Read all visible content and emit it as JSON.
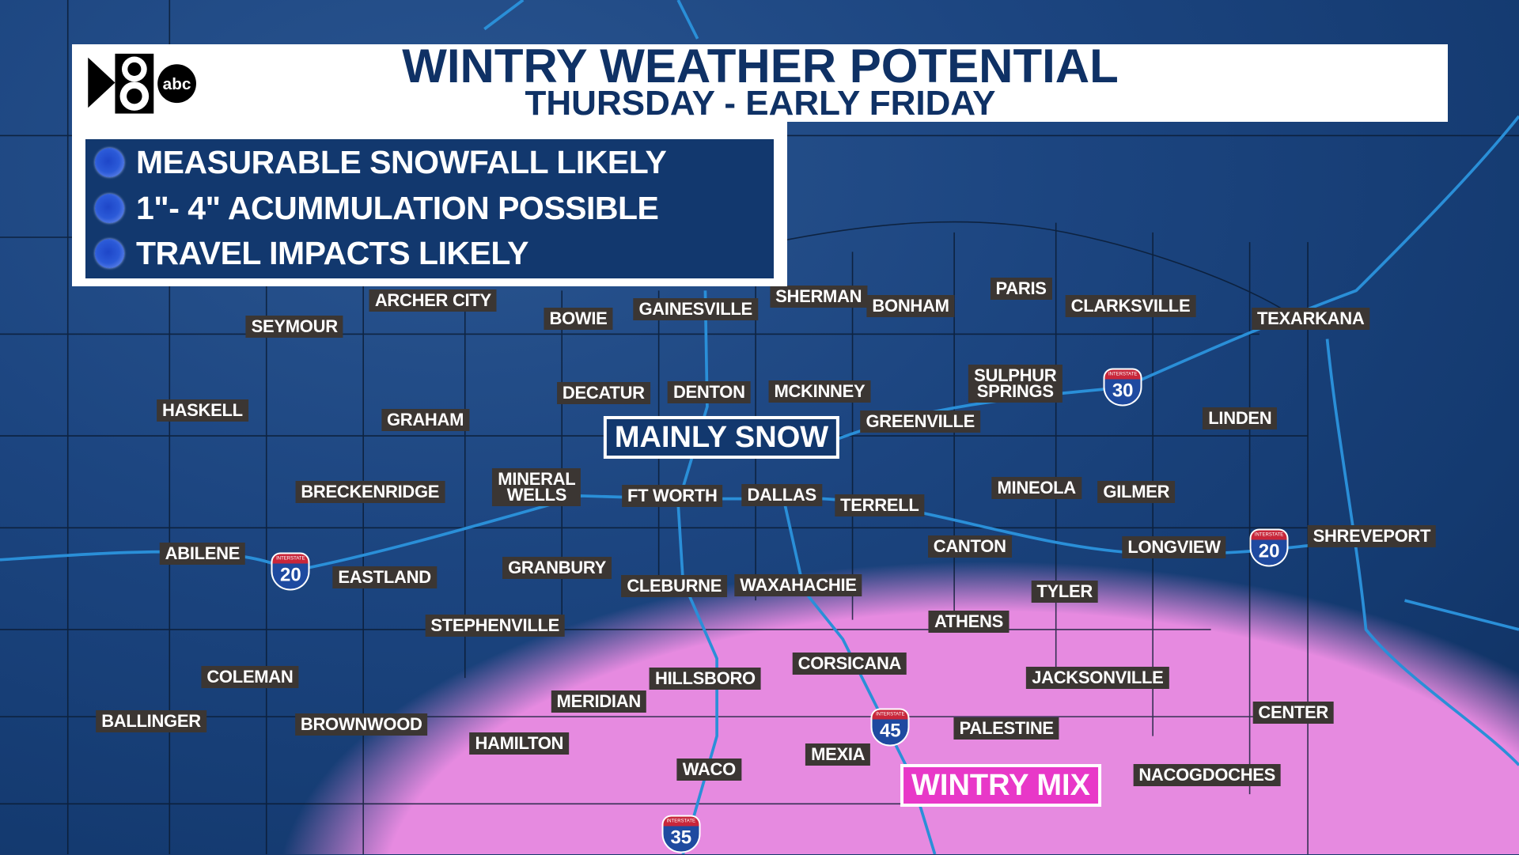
{
  "header": {
    "title": "WINTRY WEATHER POTENTIAL",
    "subtitle": "THURSDAY - EARLY FRIDAY",
    "logo_text": "WFAA 8 abc"
  },
  "bullets": [
    {
      "text": "MEASURABLE SNOWFALL LIKELY",
      "icon": "blue-dot-icon"
    },
    {
      "text": "1\"- 4\" ACUMMULATION POSSIBLE",
      "icon": "blue-dot-icon"
    },
    {
      "text": "TRAVEL IMPACTS LIKELY",
      "icon": "blue-dot-icon"
    }
  ],
  "zones": {
    "snow": "MAINLY SNOW",
    "mix": "WINTRY MIX",
    "snow_color": "#163a6e",
    "mix_color": "#e68ae0"
  },
  "cities": [
    "ARCHER CITY",
    "SEYMOUR",
    "BOWIE",
    "GAINESVILLE",
    "SHERMAN",
    "BONHAM",
    "PARIS",
    "CLARKSVILLE",
    "TEXARKANA",
    "HASKELL",
    "GRAHAM",
    "DECATUR",
    "DENTON",
    "MCKINNEY",
    "SULPHUR\nSPRINGS",
    "LINDEN",
    "GREENVILLE",
    "BRECKENRIDGE",
    "MINERAL\nWELLS",
    "FT WORTH",
    "DALLAS",
    "TERRELL",
    "MINEOLA",
    "GILMER",
    "ABILENE",
    "EASTLAND",
    "GRANBURY",
    "CLEBURNE",
    "WAXAHACHIE",
    "CANTON",
    "LONGVIEW",
    "SHREVEPORT",
    "TYLER",
    "STEPHENVILLE",
    "ATHENS",
    "CORSICANA",
    "HILLSBORO",
    "JACKSONVILLE",
    "COLEMAN",
    "MERIDIAN",
    "BALLINGER",
    "BROWNWOOD",
    "PALESTINE",
    "CENTER",
    "HAMILTON",
    "WACO",
    "MEXIA",
    "NACOGDOCHES"
  ],
  "interstates": [
    "30",
    "20",
    "20",
    "45",
    "35"
  ],
  "interstate_label": "INTERSTATE"
}
